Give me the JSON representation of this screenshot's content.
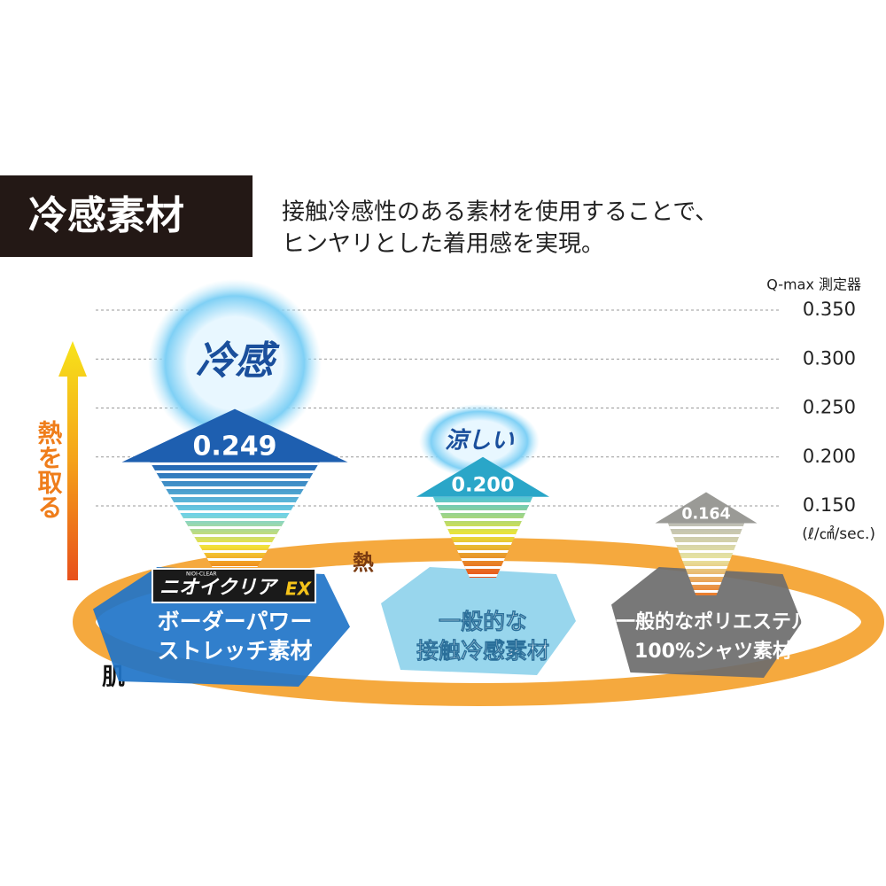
{
  "header": {
    "title": "冷感素材",
    "description": [
      "接触冷感性のある素材を使用することで、",
      "ヒンヤリとした着用感を実現。"
    ]
  },
  "chart_data": {
    "type": "arrow",
    "y_label": "Q-max 測定器",
    "unit": "(ℓ/㎠/sec.)",
    "ylim": [
      0.15,
      0.35
    ],
    "yticks": [
      {
        "value": 0.35,
        "label": "0.350"
      },
      {
        "value": 0.3,
        "label": "0.300"
      },
      {
        "value": 0.25,
        "label": "0.250"
      },
      {
        "value": 0.2,
        "label": "0.200"
      },
      {
        "value": 0.15,
        "label": "0.150"
      }
    ],
    "grid": true,
    "categories": [
      [
        "ボーダーパワー",
        "ストレッチ素材"
      ],
      [
        "一般的な",
        "接触冷感素材"
      ],
      [
        "一般的なポリエステル",
        "100%シャツ素材"
      ]
    ],
    "values": [
      0.249,
      0.2,
      0.164
    ],
    "value_labels": [
      "0.249",
      "0.200",
      "0.164"
    ],
    "colors": [
      "#1e5fb0",
      "#2aa6c8",
      "#9a9a96"
    ],
    "badges": [
      "冷感",
      "涼しい"
    ],
    "brand": {
      "name": "ニオイクリア",
      "suffix": "EX",
      "small": "NIOI-CLEAR"
    },
    "side_label": "熱を取る",
    "heat_label": "熱",
    "skin_label": "肌"
  }
}
